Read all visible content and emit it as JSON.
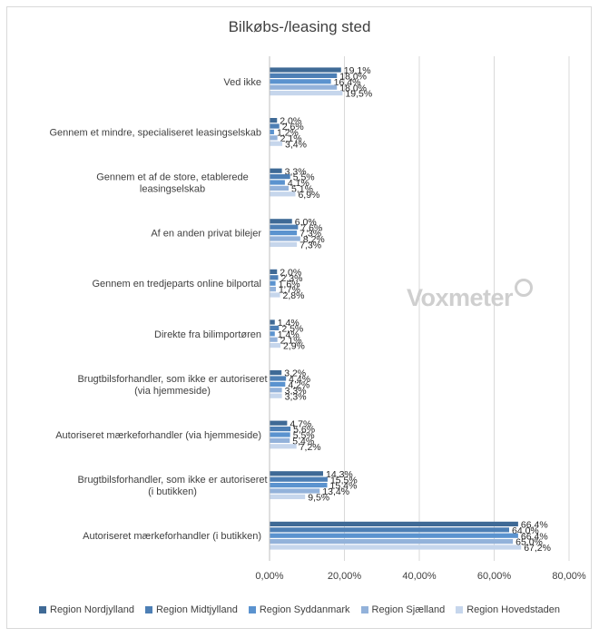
{
  "chart_data": {
    "type": "bar",
    "orientation": "horizontal",
    "title": "Bilkøbs-/leasing sted",
    "categories": [
      "Ved ikke",
      "Gennem et mindre, specialiseret leasingselskab",
      "Gennem et af de store, etablerede leasingselskab",
      "Af en anden privat bilejer",
      "Gennem en tredjeparts online bilportal",
      "Direkte fra bilimportøren",
      "Brugtbilsforhandler, som ikke er autoriseret (via hjemmeside)",
      "Autoriseret mærkeforhandler (via hjemmeside)",
      "Brugtbilsforhandler, som ikke er autoriseret (i butikken)",
      "Autoriseret mærkeforhandler (i butikken)"
    ],
    "series": [
      {
        "name": "Region Nordjylland",
        "color": "#3f6a96",
        "values": [
          19.1,
          2.0,
          3.3,
          6.0,
          2.0,
          1.4,
          3.2,
          4.7,
          14.3,
          66.4
        ],
        "labels": [
          "19,1%",
          "2,0%",
          "3,3%",
          "6,0%",
          "2,0%",
          "1,4%",
          "3,2%",
          "4,7%",
          "14,3%",
          "66,4%"
        ]
      },
      {
        "name": "Region Midtjylland",
        "color": "#4d7fb5",
        "values": [
          18.0,
          2.6,
          5.5,
          7.6,
          2.3,
          2.5,
          4.4,
          5.6,
          15.5,
          64.0
        ],
        "labels": [
          "18,0%",
          "2,6%",
          "5,5%",
          "7,6%",
          "2,3%",
          "2,5%",
          "4,4%",
          "5,6%",
          "15,5%",
          "64,0%"
        ]
      },
      {
        "name": "Region Syddanmark",
        "color": "#5b93cf",
        "values": [
          16.4,
          1.2,
          4.1,
          7.3,
          1.6,
          1.4,
          4.2,
          5.5,
          15.4,
          66.4
        ],
        "labels": [
          "16,4%",
          "1,2%",
          "4,1%",
          "7,3%",
          "1,6%",
          "1,4%",
          "4,2%",
          "5,5%",
          "15,4%",
          "66,4%"
        ]
      },
      {
        "name": "Region Sjælland",
        "color": "#93b2da",
        "values": [
          18.0,
          2.1,
          5.1,
          8.2,
          1.7,
          2.1,
          3.3,
          5.4,
          13.4,
          65.0
        ],
        "labels": [
          "18,0%",
          "2,1%",
          "5,1%",
          "8,2%",
          "1,7%",
          "2,1%",
          "3,3%",
          "5,4%",
          "13,4%",
          "65,0%"
        ]
      },
      {
        "name": "Region Hovedstaden",
        "color": "#c6d6ec",
        "values": [
          19.5,
          3.4,
          6.9,
          7.3,
          2.8,
          2.9,
          3.3,
          7.2,
          9.5,
          67.2
        ],
        "labels": [
          "19,5%",
          "3,4%",
          "6,9%",
          "7,3%",
          "2,8%",
          "2,9%",
          "3,3%",
          "7,2%",
          "9,5%",
          "67,2%"
        ]
      }
    ],
    "xlim": [
      0,
      80
    ],
    "xticks": [
      0,
      20,
      40,
      60,
      80
    ],
    "xtick_labels": [
      "0,00%",
      "20,00%",
      "40,00%",
      "60,00%",
      "80,00%"
    ],
    "grid": true,
    "legend_position": "bottom"
  },
  "watermark": "Voxmeter"
}
